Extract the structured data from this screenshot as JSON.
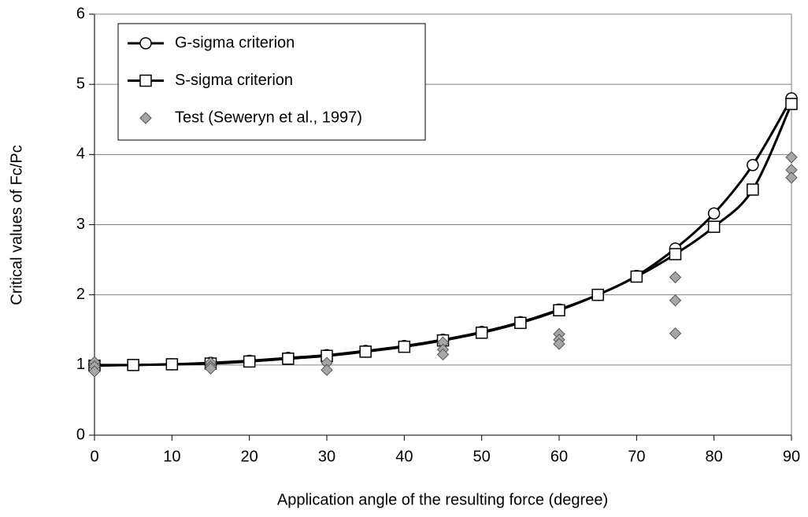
{
  "chart_data": {
    "type": "line",
    "x_label": "Application angle of the resulting force (degree)",
    "y_label": "Critical values of  Fc/Pc",
    "xlim": [
      0,
      90
    ],
    "xticks": [
      0,
      10,
      20,
      30,
      40,
      50,
      60,
      70,
      80,
      90
    ],
    "ylim": [
      0,
      6
    ],
    "yticks": [
      0,
      1,
      2,
      3,
      4,
      5,
      6
    ],
    "grid": true,
    "legend": "upper left",
    "series": [
      {
        "name": "G-sigma criterion",
        "type": "line",
        "marker": "circle",
        "color": "#000000",
        "x": [
          0,
          5,
          10,
          15,
          20,
          25,
          30,
          35,
          40,
          45,
          50,
          55,
          60,
          65,
          70,
          75,
          80,
          85,
          90
        ],
        "values": [
          1.0,
          1.0,
          1.01,
          1.03,
          1.06,
          1.1,
          1.14,
          1.2,
          1.27,
          1.36,
          1.47,
          1.61,
          1.79,
          2.0,
          2.27,
          2.66,
          3.16,
          3.85,
          4.8
        ]
      },
      {
        "name": "S-sigma criterion",
        "type": "line",
        "marker": "square",
        "color": "#000000",
        "x": [
          0,
          5,
          10,
          15,
          20,
          25,
          30,
          35,
          40,
          45,
          50,
          55,
          60,
          65,
          70,
          75,
          80,
          85,
          90
        ],
        "values": [
          0.99,
          1.0,
          1.01,
          1.02,
          1.05,
          1.09,
          1.13,
          1.19,
          1.26,
          1.35,
          1.46,
          1.6,
          1.78,
          2.0,
          2.26,
          2.58,
          2.97,
          3.5,
          4.72
        ]
      },
      {
        "name": "Test (Seweryn et al., 1997)",
        "type": "scatter",
        "marker": "diamond",
        "color": "#a6a6a6",
        "x": [
          0,
          0,
          0,
          15,
          15,
          15,
          30,
          30,
          45,
          45,
          45,
          60,
          60,
          60,
          75,
          75,
          75,
          90,
          90,
          90
        ],
        "values": [
          1.04,
          0.98,
          0.91,
          1.03,
          0.98,
          0.95,
          1.03,
          0.93,
          1.32,
          1.22,
          1.15,
          1.44,
          1.36,
          1.3,
          2.25,
          1.92,
          1.45,
          3.96,
          3.78,
          3.67
        ]
      }
    ]
  }
}
